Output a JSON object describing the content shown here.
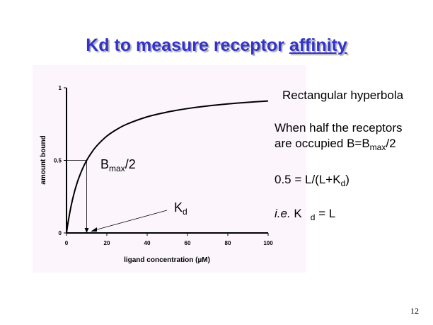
{
  "slide": {
    "title_main": "Kd to measure receptor ",
    "title_underlined": "affinity",
    "page_number": "12",
    "title_color": "#3333cc"
  },
  "annotations": {
    "bmax_half": {
      "main": "B",
      "sub": "max",
      "tail": "/2"
    },
    "kd": {
      "main": "K",
      "sub": "d"
    }
  },
  "notes": {
    "line1": "Rectangular hyperbola",
    "line2": "When half the receptors",
    "line3_pre": "are occupied B=B",
    "line3_sub": "max",
    "line3_post": "/2",
    "line4_pre": "0.5 = L/(L+K",
    "line4_sub": "d",
    "line4_post": ")",
    "line5_italic": "i.e.",
    "line5_k": " K",
    "line5_sub": "d",
    "line5_post": " = L"
  },
  "chart_data": {
    "type": "line",
    "xlabel": "ligand concentration (µM)",
    "ylabel": "amount bound",
    "xlim": [
      0,
      100
    ],
    "ylim": [
      0,
      1
    ],
    "xticks": [
      "0",
      "20",
      "40",
      "60",
      "80",
      "100"
    ],
    "yticks": [
      "0",
      "0.5",
      "1"
    ],
    "grid": false,
    "x": [
      0,
      0.5,
      1,
      2,
      3,
      4,
      5,
      6,
      8,
      10,
      12,
      15,
      20,
      25,
      30,
      40,
      50,
      60,
      70,
      80,
      90,
      100
    ],
    "y": [
      0,
      0.048,
      0.091,
      0.167,
      0.231,
      0.286,
      0.333,
      0.375,
      0.444,
      0.5,
      0.545,
      0.6,
      0.667,
      0.714,
      0.75,
      0.8,
      0.833,
      0.857,
      0.875,
      0.889,
      0.9,
      0.909
    ],
    "marker": {
      "x": 10,
      "y": 0.5
    },
    "line_color": "#000000"
  }
}
